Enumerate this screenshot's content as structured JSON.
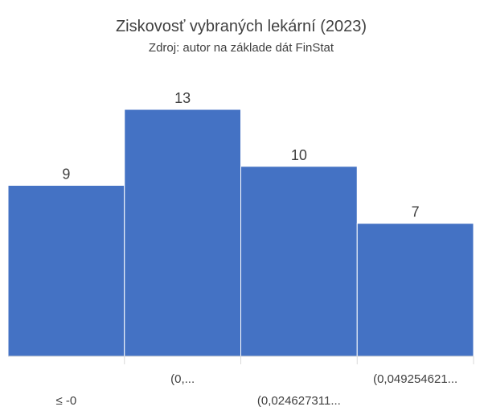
{
  "chart_data": {
    "type": "histogram",
    "title": "Ziskovosť vybraných lekární (2023)",
    "subtitle": "Zdroj: autor na základe dát FinStat",
    "categories": [
      "≤ -0",
      "(0,...",
      "(0,024627311...",
      "(0,049254621..."
    ],
    "values": [
      9,
      13,
      10,
      7
    ],
    "color": "#4472c4"
  }
}
